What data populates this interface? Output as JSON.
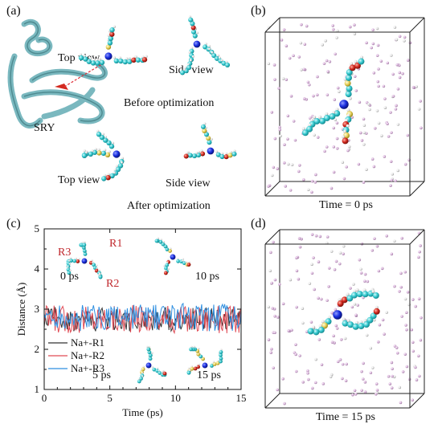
{
  "panels": {
    "a": {
      "label": "(a)",
      "sry": "SRY",
      "top_view": "Top view",
      "side_view": "Side view",
      "before": "Before optimization",
      "top_view_after": "Top view",
      "side_view_after": "Side view",
      "after": "After optimization"
    },
    "b": {
      "label": "(b)",
      "caption": "Time = 0 ps"
    },
    "c": {
      "label": "(c)",
      "snapshots": [
        "0 ps",
        "10 ps",
        "5 ps",
        "15 ps"
      ],
      "residues": [
        "R1",
        "R2",
        "R3"
      ]
    },
    "d": {
      "label": "(d)",
      "caption": "Time = 15 ps"
    }
  },
  "colors": {
    "na_r1": "#333333",
    "na_r2": "#e04b55",
    "na_r3": "#2f8fe0",
    "carbon": "#35c9cf",
    "sodium": "#1a2fe0",
    "oxygen": "#d32a1f",
    "sulfur": "#e8d25a",
    "water": "#d7b4d9",
    "protein": "#7ab8bf"
  },
  "chart_data": {
    "type": "line",
    "xlabel": "Time (ps)",
    "ylabel": "Distance (Å)",
    "xlim": [
      0,
      15
    ],
    "ylim": [
      1,
      5
    ],
    "xticks": [
      "0",
      "5",
      "10",
      "15"
    ],
    "yticks": [
      "1",
      "2",
      "3",
      "4",
      "5"
    ],
    "legend_position": "bottom-left",
    "series": [
      {
        "name": "Na+-R1",
        "mean": 2.75,
        "amplitude": 0.3
      },
      {
        "name": "Na+-R2",
        "mean": 2.75,
        "amplitude": 0.35
      },
      {
        "name": "Na+-R3",
        "mean": 2.8,
        "amplitude": 0.35
      }
    ]
  }
}
